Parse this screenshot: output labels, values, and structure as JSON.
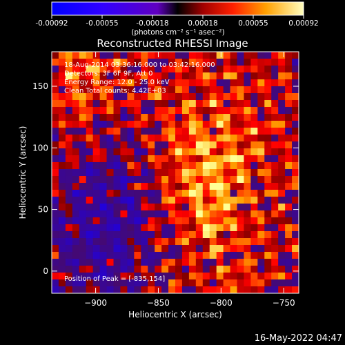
{
  "chart_data": {
    "type": "heatmap",
    "title": "Reconstructed RHESSI Image",
    "xlabel": "Heliocentric X (arcsec)",
    "ylabel": "Heliocentric Y (arcsec)",
    "xlim": [
      -935,
      -738
    ],
    "ylim": [
      -18,
      178
    ],
    "x_ticks": [
      -900,
      -850,
      -800,
      -750
    ],
    "y_ticks": [
      0,
      50,
      100,
      150
    ],
    "colorbar": {
      "ticks": [
        "-0.00092",
        "-0.00055",
        "-0.00018",
        "0.00018",
        "0.00055",
        "0.00092"
      ],
      "range": [
        -0.00092,
        0.00092
      ],
      "unit_label": "(photons cm⁻² s⁻¹ asec⁻²)"
    },
    "info_lines": [
      "18-Aug-2014 03:36:16.000 to 03:42:16.000",
      "Detectors: 3F 6F 9F, Att 0",
      "Energy Range: 12.0 - 25.0 keV",
      "Clean    Total counts: 4.42E+03"
    ],
    "peak_label": "Position of Peak = [-835,154]",
    "colors": {
      "negative": "#1e00ff",
      "mid": "#ffffff",
      "low_positive": "#9a0000",
      "high_positive": "#ffff80"
    }
  },
  "footer": {
    "timestamp": "16-May-2022 04:47"
  }
}
